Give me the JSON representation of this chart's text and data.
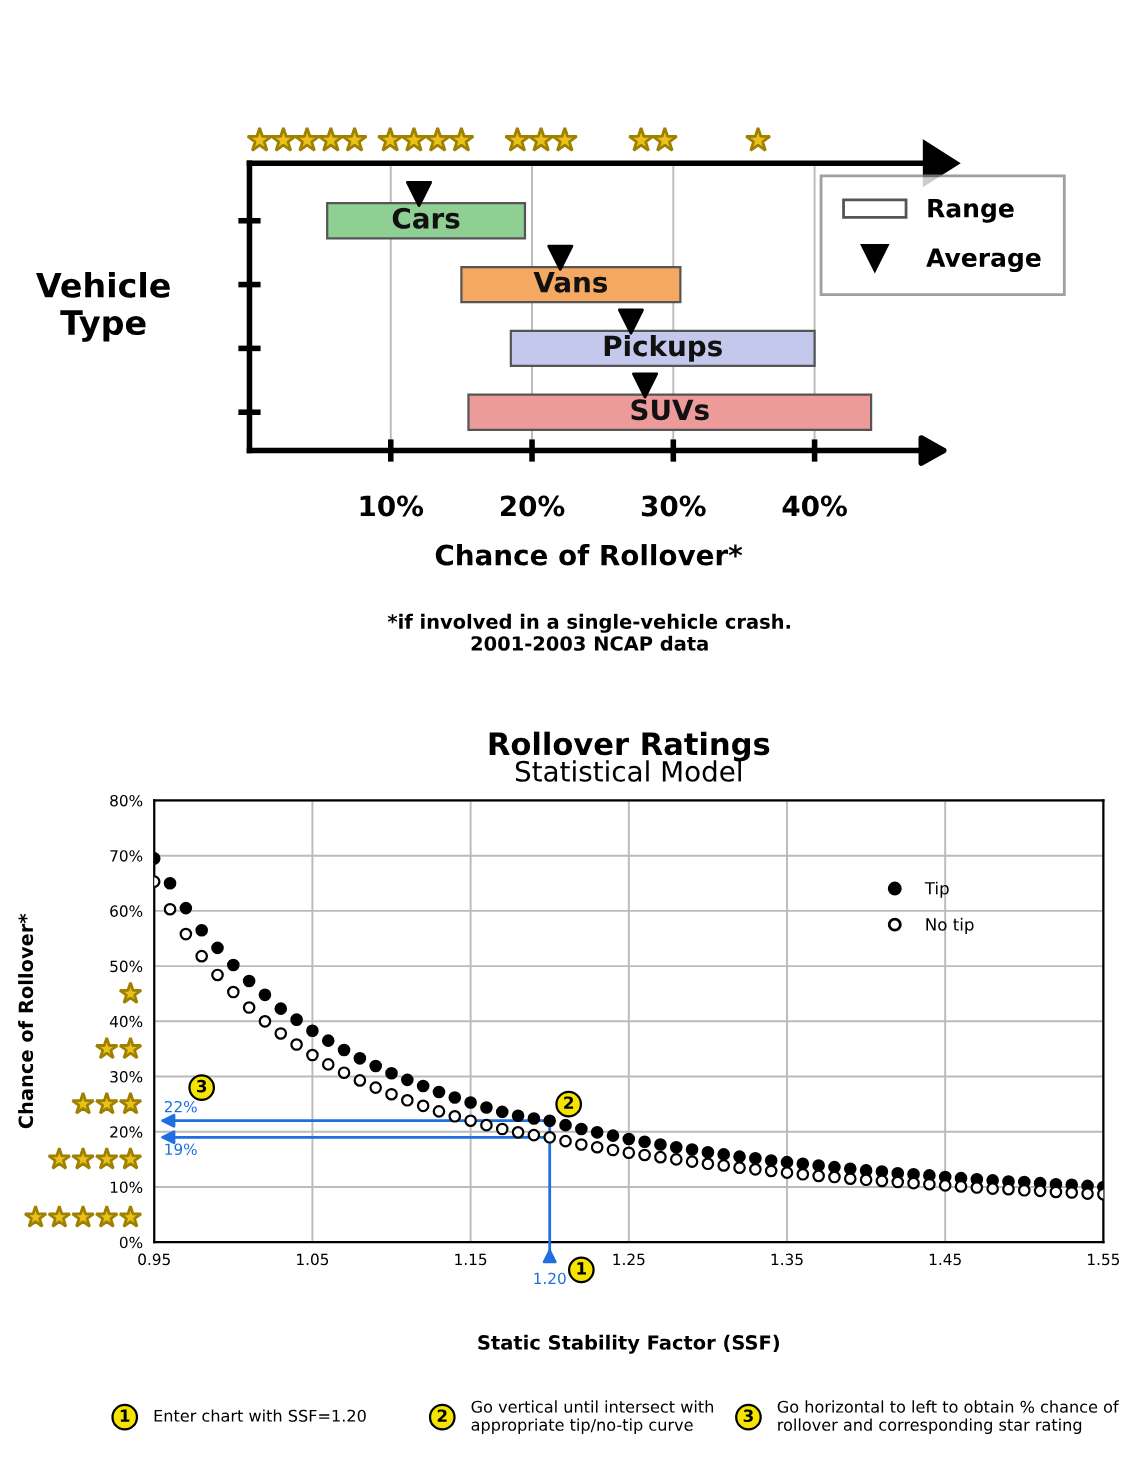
{
  "chart_data": [
    {
      "type": "bar",
      "orientation": "horizontal",
      "xlabel": "Chance of Rollover*",
      "ylabel": "Vehicle Type",
      "categories": [
        "Cars",
        "Vans",
        "Pickups",
        "SUVs"
      ],
      "series": [
        {
          "name": "Range",
          "type": "bar",
          "colors": [
            "#8fcf94",
            "#f4a862",
            "#c3c8ec",
            "#ec9a9a"
          ],
          "base": [
            5.5,
            15,
            18.5,
            15.5
          ],
          "values": [
            14,
            15.5,
            21.5,
            28.5
          ]
        },
        {
          "name": "Average",
          "type": "scatter",
          "color": "#000000",
          "marker": "triangle",
          "values": [
            12,
            22,
            27,
            28
          ]
        }
      ],
      "xlim": [
        0,
        48
      ],
      "xticks": [
        {
          "value": 10,
          "label": "10%"
        },
        {
          "value": 20,
          "label": "20%"
        },
        {
          "value": 30,
          "label": "30%"
        },
        {
          "value": 40,
          "label": "40%"
        }
      ],
      "tick_labels": "x",
      "grid": "x",
      "legend": "top right",
      "annotations": [
        "*if involved in a single-vehicle crash.\n2001-2003 NCAP data"
      ]
    },
    {
      "type": "scatter",
      "title": "Rollover Ratings",
      "subtitle": "Statistical Model",
      "xlabel": "Static Stability Factor (SSF)",
      "ylabel": "Chance of Rollover*",
      "x": [
        0.95,
        0.96,
        0.97,
        0.98,
        0.99,
        1.0,
        1.01,
        1.02,
        1.03,
        1.04,
        1.05,
        1.06,
        1.07,
        1.08,
        1.09,
        1.1,
        1.11,
        1.12,
        1.13,
        1.14,
        1.15,
        1.16,
        1.17,
        1.18,
        1.19,
        1.2,
        1.21,
        1.22,
        1.23,
        1.24,
        1.25,
        1.26,
        1.27,
        1.28,
        1.29,
        1.3,
        1.31,
        1.32,
        1.33,
        1.34,
        1.35,
        1.36,
        1.37,
        1.38,
        1.39,
        1.4,
        1.41,
        1.42,
        1.43,
        1.44,
        1.45,
        1.46,
        1.47,
        1.48,
        1.49,
        1.5,
        1.51,
        1.52,
        1.53,
        1.54,
        1.55
      ],
      "series": [
        {
          "name": "Tip",
          "color": "#000000",
          "marker": "circle",
          "values": [
            69.5,
            65,
            60.5,
            56.5,
            53.3,
            50.2,
            47.3,
            44.8,
            42.3,
            40.3,
            38.3,
            36.5,
            34.8,
            33.3,
            31.9,
            30.6,
            29.4,
            28.3,
            27.2,
            26.2,
            25.3,
            24.4,
            23.6,
            22.9,
            22.4,
            22,
            21.2,
            20.5,
            19.9,
            19.3,
            18.7,
            18.2,
            17.7,
            17.2,
            16.8,
            16.3,
            15.9,
            15.5,
            15.2,
            14.8,
            14.5,
            14.2,
            13.9,
            13.6,
            13.3,
            13,
            12.8,
            12.5,
            12.3,
            12.1,
            11.8,
            11.6,
            11.4,
            11.2,
            11,
            10.9,
            10.7,
            10.5,
            10.4,
            10.2,
            10
          ]
        },
        {
          "name": "No tip",
          "color": "#ffffff",
          "marker": "circle",
          "values": [
            65.3,
            60.3,
            55.8,
            51.8,
            48.4,
            45.3,
            42.5,
            40,
            37.8,
            35.8,
            33.9,
            32.2,
            30.7,
            29.3,
            28,
            26.8,
            25.7,
            24.7,
            23.7,
            22.8,
            22,
            21.2,
            20.5,
            19.9,
            19.4,
            19,
            18.3,
            17.7,
            17.2,
            16.7,
            16.2,
            15.8,
            15.4,
            15,
            14.6,
            14.2,
            13.9,
            13.5,
            13.2,
            12.9,
            12.6,
            12.3,
            12,
            11.8,
            11.5,
            11.3,
            11.1,
            10.9,
            10.7,
            10.5,
            10.3,
            10.1,
            9.9,
            9.7,
            9.6,
            9.4,
            9.3,
            9.1,
            9,
            8.8,
            8.7
          ]
        }
      ],
      "xlim": [
        0.95,
        1.55
      ],
      "xticks": [
        0.95,
        1.05,
        1.15,
        1.25,
        1.35,
        1.45,
        1.55
      ],
      "ylim": [
        0,
        80
      ],
      "yticks": [
        {
          "value": 0,
          "label": "0%"
        },
        {
          "value": 10,
          "label": "10%"
        },
        {
          "value": 20,
          "label": "20%"
        },
        {
          "value": 30,
          "label": "30%"
        },
        {
          "value": 40,
          "label": "40%"
        },
        {
          "value": 50,
          "label": "50%"
        },
        {
          "value": 60,
          "label": "60%"
        },
        {
          "value": 70,
          "label": "70%"
        },
        {
          "value": 80,
          "label": "80%"
        }
      ],
      "grid": true,
      "legend": "top right",
      "annotations": [
        "22%",
        "19%",
        "1.20",
        "1",
        "2",
        "3",
        "1",
        "Enter chart with SSF=1.20",
        "2",
        "Go vertical until intersect with\nappropriate tip/no-tip curve",
        "3",
        "Go horizontal to left to obtain % chance of\nrollover and corresponding star rating"
      ]
    }
  ]
}
